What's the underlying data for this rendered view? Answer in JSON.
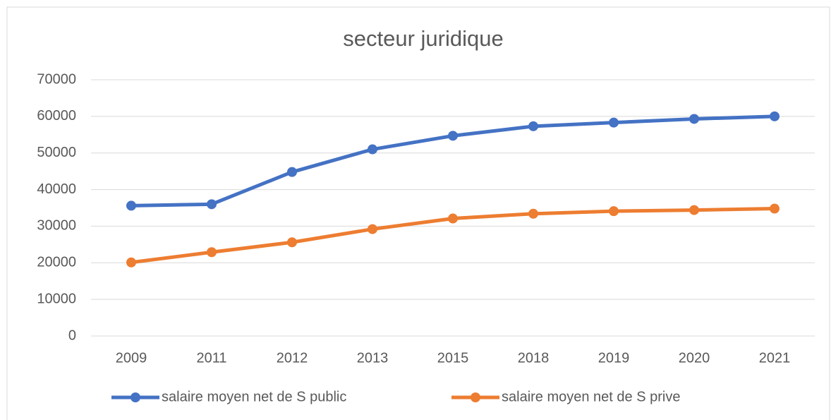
{
  "chart_data": {
    "type": "line",
    "title": "secteur juridique",
    "categories": [
      "2009",
      "2011",
      "2012",
      "2013",
      "2015",
      "2018",
      "2019",
      "2020",
      "2021"
    ],
    "series": [
      {
        "name": "salaire moyen net de S public",
        "color": "#4472c4",
        "values": [
          35600,
          36000,
          44800,
          51000,
          54700,
          57300,
          58300,
          59300,
          60000
        ]
      },
      {
        "name": "salaire moyen net de S prive",
        "color": "#ed7d31",
        "values": [
          20100,
          22900,
          25600,
          29200,
          32100,
          33400,
          34100,
          34400,
          34800
        ]
      }
    ],
    "ylim": [
      0,
      70000
    ],
    "yticks": [
      0,
      10000,
      20000,
      30000,
      40000,
      50000,
      60000,
      70000
    ],
    "grid": true,
    "legend": "bottom"
  }
}
